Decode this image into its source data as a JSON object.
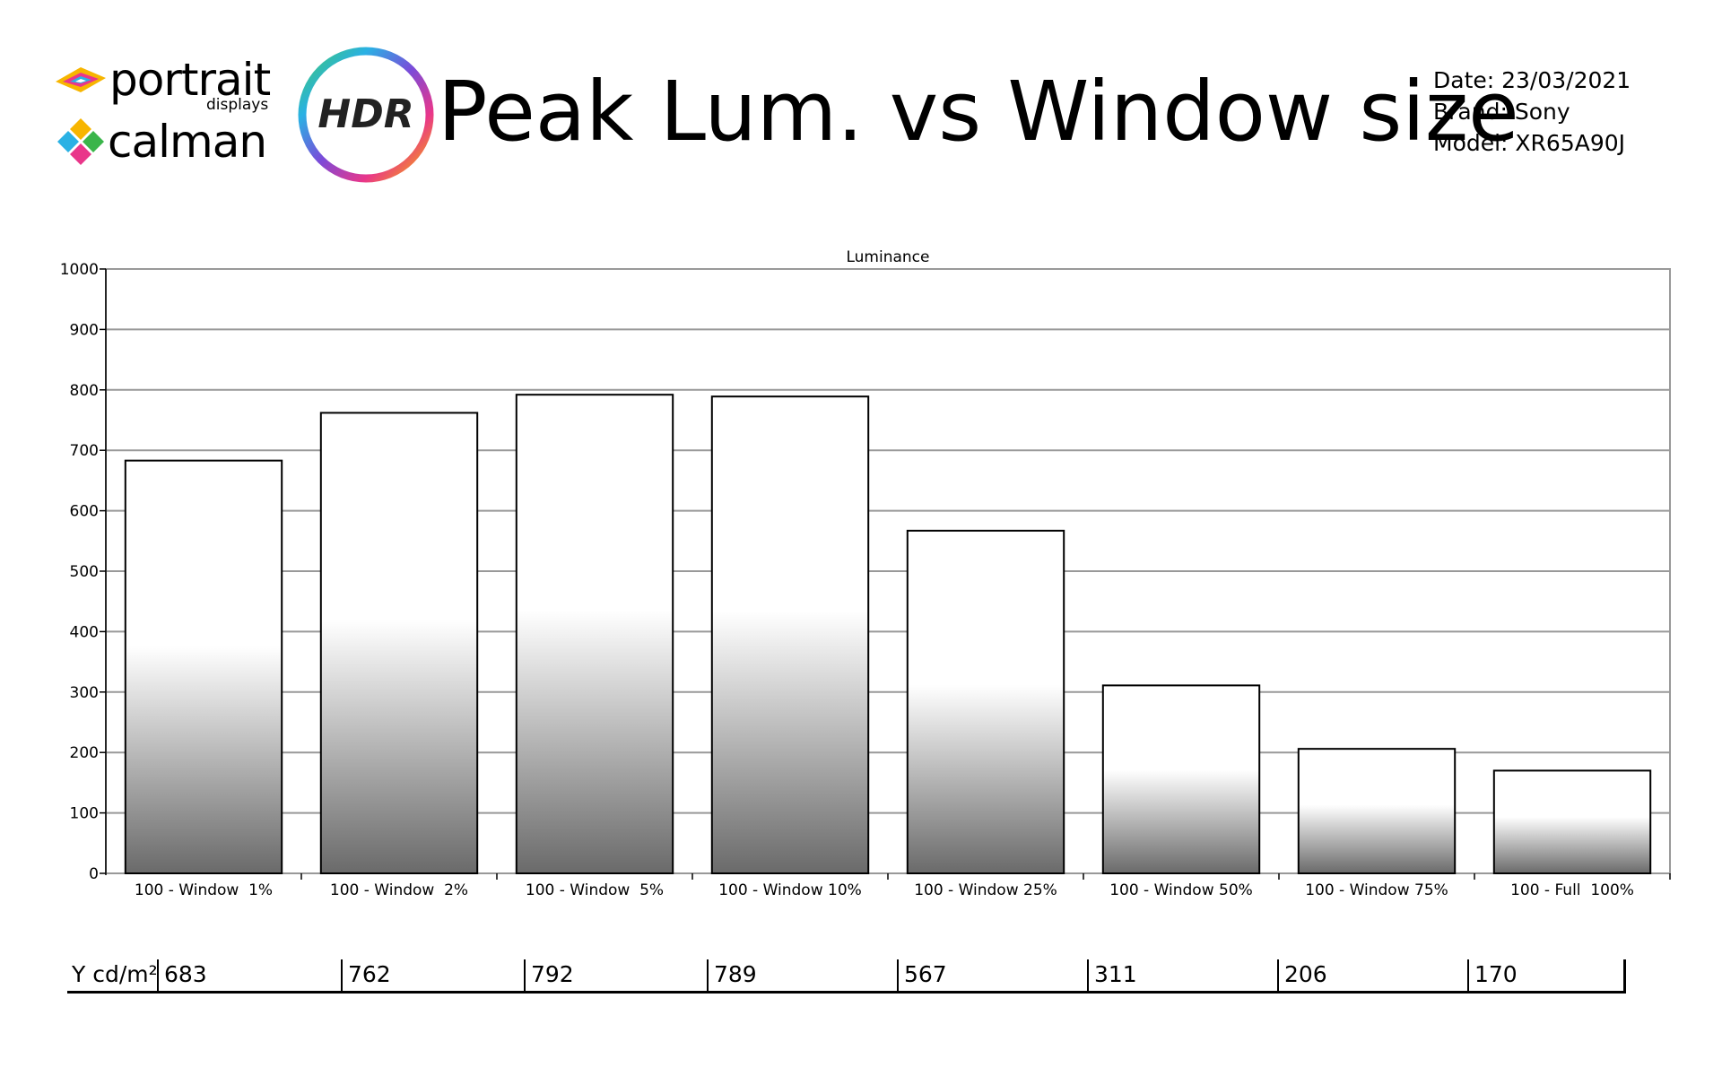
{
  "header": {
    "brand_primary": "portrait",
    "brand_secondary": "displays",
    "brand_tertiary": "calman",
    "badge": "HDR",
    "title": "Peak Lum. vs Window size"
  },
  "meta": {
    "date": "Date: 23/03/2021",
    "brand": "Brand: Sony",
    "model": "Model: XR65A90J"
  },
  "chart_data": {
    "type": "bar",
    "title": "Luminance",
    "xlabel": "",
    "ylabel": "",
    "ylim": [
      0,
      1000
    ],
    "yticks": [
      0,
      100,
      200,
      300,
      400,
      500,
      600,
      700,
      800,
      900,
      1000
    ],
    "grid": true,
    "categories": [
      "100 - Window  1%",
      "100 - Window  2%",
      "100 - Window  5%",
      "100 - Window 10%",
      "100 - Window 25%",
      "100 - Window 50%",
      "100 - Window 75%",
      "100 - Full  100%"
    ],
    "values": [
      683,
      762,
      792,
      789,
      567,
      311,
      206,
      170
    ]
  },
  "table": {
    "row_label": "Y cd/m²",
    "values": [
      "683",
      "762",
      "792",
      "789",
      "567",
      "311",
      "206",
      "170"
    ]
  },
  "colors": {
    "bar_top": "#ffffff",
    "bar_bottom": "#6a6a6a",
    "grid": "#999999",
    "badge_text": "#222222"
  }
}
